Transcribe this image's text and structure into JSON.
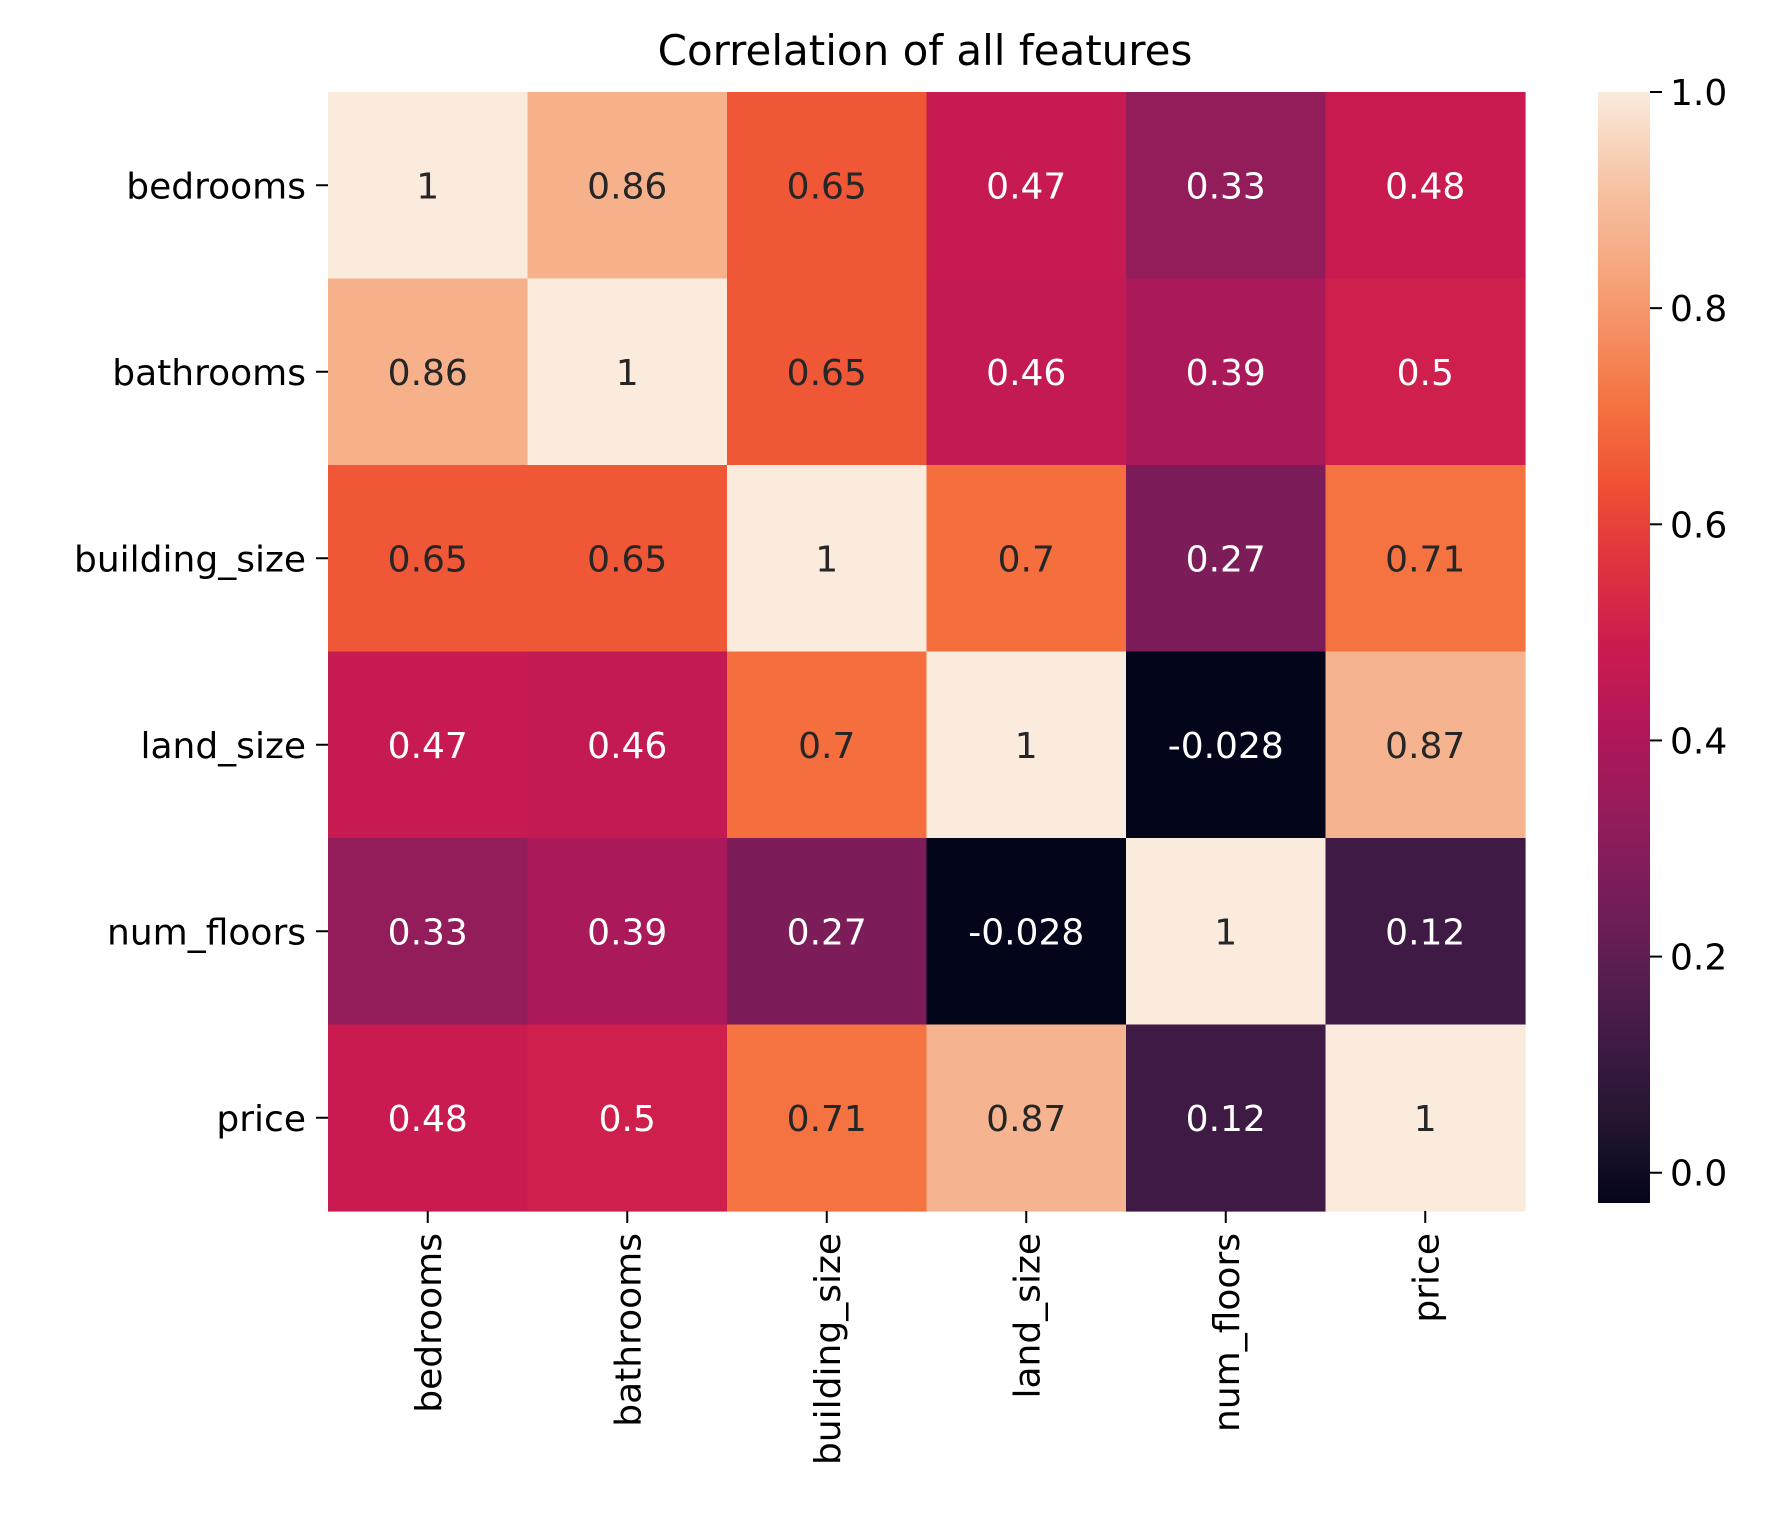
{
  "chart_data": {
    "type": "heatmap",
    "title": "Correlation of all features",
    "row_labels": [
      "bedrooms",
      "bathrooms",
      "building_size",
      "land_size",
      "num_floors",
      "price"
    ],
    "col_labels": [
      "bedrooms",
      "bathrooms",
      "building_size",
      "land_size",
      "num_floors",
      "price"
    ],
    "values": [
      [
        1,
        0.86,
        0.65,
        0.47,
        0.33,
        0.48
      ],
      [
        0.86,
        1,
        0.65,
        0.46,
        0.39,
        0.5
      ],
      [
        0.65,
        0.65,
        1,
        0.7,
        0.27,
        0.71
      ],
      [
        0.47,
        0.46,
        0.7,
        1,
        -0.028,
        0.87
      ],
      [
        0.33,
        0.39,
        0.27,
        -0.028,
        1,
        0.12
      ],
      [
        0.48,
        0.5,
        0.71,
        0.87,
        0.12,
        1
      ]
    ],
    "annotations": [
      [
        "1",
        "0.86",
        "0.65",
        "0.47",
        "0.33",
        "0.48"
      ],
      [
        "0.86",
        "1",
        "0.65",
        "0.46",
        "0.39",
        "0.5"
      ],
      [
        "0.65",
        "0.65",
        "1",
        "0.7",
        "0.27",
        "0.71"
      ],
      [
        "0.47",
        "0.46",
        "0.7",
        "1",
        "-0.028",
        "0.87"
      ],
      [
        "0.33",
        "0.39",
        "0.27",
        "-0.028",
        "1",
        "0.12"
      ],
      [
        "0.48",
        "0.5",
        "0.71",
        "0.87",
        "0.12",
        "1"
      ]
    ],
    "colorbar": {
      "vmin": -0.028,
      "vmax": 1.0,
      "ticks": [
        0.0,
        0.2,
        0.4,
        0.6,
        0.8,
        1.0
      ],
      "tick_labels": [
        "0.0",
        "0.2",
        "0.4",
        "0.6",
        "0.8",
        "1.0"
      ]
    },
    "colormap": {
      "name": "rocket",
      "stops": [
        "#03051a",
        "#231530",
        "#3e1a44",
        "#5c1e50",
        "#7a1d5a",
        "#971c5b",
        "#b31759",
        "#cb1b4f",
        "#e0313f",
        "#ef4f35",
        "#f4713f",
        "#f58f63",
        "#f6ad87",
        "#f7c8ab",
        "#faebdd"
      ]
    },
    "light_text_color": "#ffffff",
    "dark_text_color": "#262626"
  }
}
